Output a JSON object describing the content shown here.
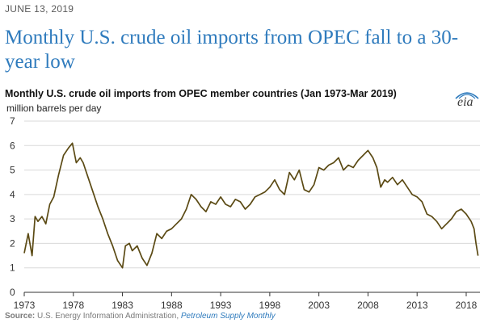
{
  "date": "JUNE 13, 2019",
  "headline": "Monthly U.S. crude oil imports from OPEC fall to a 30-year low",
  "source": {
    "label": "Source:",
    "agency": " U.S. Energy Information Administration, ",
    "publication": "Petroleum Supply Monthly"
  },
  "logo": {
    "text": "eia"
  },
  "colors": {
    "line": "#5b4a14",
    "headline": "#2f7bbd",
    "grid": "#d9d9d9"
  },
  "chart_data": {
    "type": "line",
    "title": "Monthly U.S. crude oil imports from OPEC member countries (Jan 1973-Mar 2019)",
    "ylabel": "million barrels per day",
    "xlabel": "",
    "ylim": [
      0,
      7
    ],
    "xlim": [
      1973,
      2019.4
    ],
    "grid": true,
    "legend": "none",
    "yticks": [
      0,
      1,
      2,
      3,
      4,
      5,
      6,
      7
    ],
    "xticks": [
      1973,
      1978,
      1983,
      1988,
      1993,
      1998,
      2003,
      2008,
      2013,
      2018
    ],
    "series": [
      {
        "x": [
          1973.0,
          1973.4,
          1973.8,
          1974.1,
          1974.4,
          1974.8,
          1975.2,
          1975.6,
          1976.0,
          1976.5,
          1977.0,
          1977.5,
          1977.9,
          1978.3,
          1978.7,
          1979.0,
          1979.5,
          1980.0,
          1980.5,
          1981.0,
          1981.5,
          1982.0,
          1982.5,
          1983.0,
          1983.3,
          1983.7,
          1984.0,
          1984.5,
          1985.0,
          1985.5,
          1986.0,
          1986.5,
          1987.0,
          1987.5,
          1988.0,
          1988.5,
          1989.0,
          1989.5,
          1990.0,
          1990.5,
          1991.0,
          1991.5,
          1992.0,
          1992.5,
          1993.0,
          1993.5,
          1994.0,
          1994.5,
          1995.0,
          1995.5,
          1996.0,
          1996.5,
          1997.0,
          1997.5,
          1998.0,
          1998.5,
          1999.0,
          1999.5,
          2000.0,
          2000.5,
          2001.0,
          2001.5,
          2002.0,
          2002.5,
          2003.0,
          2003.5,
          2004.0,
          2004.5,
          2005.0,
          2005.5,
          2006.0,
          2006.5,
          2007.0,
          2007.5,
          2008.0,
          2008.5,
          2008.9,
          2009.3,
          2009.7,
          2010.0,
          2010.5,
          2011.0,
          2011.5,
          2012.0,
          2012.5,
          2013.0,
          2013.5,
          2014.0,
          2014.5,
          2015.0,
          2015.5,
          2016.0,
          2016.5,
          2017.0,
          2017.5,
          2018.0,
          2018.5,
          2018.8,
          2019.0,
          2019.2
        ],
        "y": [
          1.6,
          2.4,
          1.5,
          3.1,
          2.9,
          3.1,
          2.8,
          3.6,
          3.9,
          4.8,
          5.6,
          5.9,
          6.1,
          5.3,
          5.5,
          5.3,
          4.7,
          4.1,
          3.5,
          3.0,
          2.4,
          1.9,
          1.3,
          1.0,
          1.9,
          2.0,
          1.7,
          1.9,
          1.4,
          1.1,
          1.6,
          2.4,
          2.2,
          2.5,
          2.6,
          2.8,
          3.0,
          3.4,
          4.0,
          3.8,
          3.5,
          3.3,
          3.7,
          3.6,
          3.9,
          3.6,
          3.5,
          3.8,
          3.7,
          3.4,
          3.6,
          3.9,
          4.0,
          4.1,
          4.3,
          4.6,
          4.2,
          4.0,
          4.9,
          4.6,
          5.0,
          4.2,
          4.1,
          4.4,
          5.1,
          5.0,
          5.2,
          5.3,
          5.5,
          5.0,
          5.2,
          5.1,
          5.4,
          5.6,
          5.8,
          5.5,
          5.1,
          4.3,
          4.6,
          4.5,
          4.7,
          4.4,
          4.6,
          4.3,
          4.0,
          3.9,
          3.7,
          3.2,
          3.1,
          2.9,
          2.6,
          2.8,
          3.0,
          3.3,
          3.4,
          3.2,
          2.9,
          2.6,
          2.0,
          1.5
        ]
      }
    ]
  }
}
